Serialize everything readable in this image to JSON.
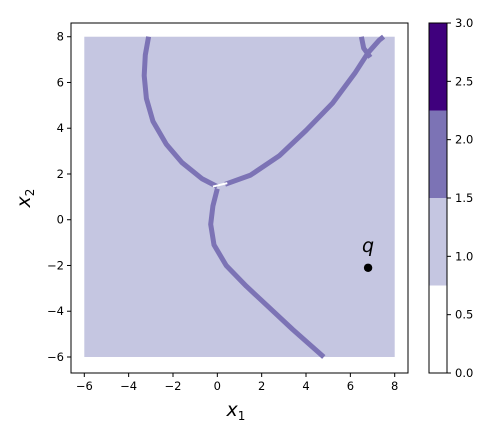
{
  "chart_data": {
    "type": "heatmap",
    "xlabel": "x",
    "xlabel_sub": "1",
    "ylabel": "x",
    "ylabel_sub": "2",
    "xlim": [
      -6.6,
      8.6
    ],
    "ylim": [
      -6.7,
      8.6
    ],
    "xticks": [
      -6,
      -4,
      -2,
      0,
      2,
      4,
      6,
      8
    ],
    "yticks": [
      -6,
      -4,
      -2,
      0,
      2,
      4,
      6,
      8
    ],
    "grid": false,
    "region_extent": {
      "x": [
        -6,
        8
      ],
      "y": [
        -6,
        8
      ]
    },
    "background_value": 1,
    "region_colors": {
      "level_1": "#c5c6e1",
      "level_2": "#7c73b5",
      "level_3": "#3f007d",
      "level_0": "#ffffff"
    },
    "boundary_curves": [
      {
        "name": "",
        "value": 2,
        "points": [
          [
            -3.1,
            8
          ],
          [
            -3.25,
            7.2
          ],
          [
            -3.3,
            6.3
          ],
          [
            -3.2,
            5.3
          ],
          [
            -2.9,
            4.3
          ],
          [
            -2.3,
            3.3
          ],
          [
            -1.6,
            2.5
          ],
          [
            -0.7,
            1.8
          ],
          [
            0.0,
            1.45
          ]
        ]
      },
      {
        "name": "",
        "value": 2,
        "points": [
          [
            0.0,
            1.35
          ],
          [
            -0.2,
            0.6
          ],
          [
            -0.3,
            -0.2
          ],
          [
            -0.15,
            -1.1
          ],
          [
            0.4,
            -2.0
          ],
          [
            1.3,
            -2.9
          ],
          [
            2.3,
            -3.8
          ],
          [
            3.4,
            -4.8
          ],
          [
            4.8,
            -6.0
          ]
        ]
      },
      {
        "name": "",
        "value": 2,
        "points": [
          [
            0.35,
            1.55
          ],
          [
            1.5,
            1.95
          ],
          [
            2.8,
            2.8
          ],
          [
            4.0,
            3.9
          ],
          [
            5.2,
            5.1
          ],
          [
            6.2,
            6.4
          ],
          [
            6.8,
            7.3
          ],
          [
            7.3,
            7.85
          ],
          [
            7.5,
            8.0
          ]
        ]
      },
      {
        "name": "",
        "value": 2,
        "points": [
          [
            6.5,
            8.0
          ],
          [
            6.6,
            7.5
          ],
          [
            6.9,
            7.1
          ]
        ]
      }
    ],
    "annotations": [
      {
        "label": "q",
        "x": 6.8,
        "y": -2.1
      }
    ],
    "colorbar": {
      "ticks": [
        "0.0",
        "0.5",
        "1.0",
        "1.5",
        "2.0",
        "2.5",
        "3.0"
      ],
      "bands": [
        {
          "from": 0.0,
          "to": 0.75,
          "color": "#ffffff"
        },
        {
          "from": 0.75,
          "to": 1.5,
          "color": "#c5c6e1"
        },
        {
          "from": 1.5,
          "to": 2.25,
          "color": "#7c73b5"
        },
        {
          "from": 2.25,
          "to": 3.0,
          "color": "#3f007d"
        }
      ]
    }
  }
}
